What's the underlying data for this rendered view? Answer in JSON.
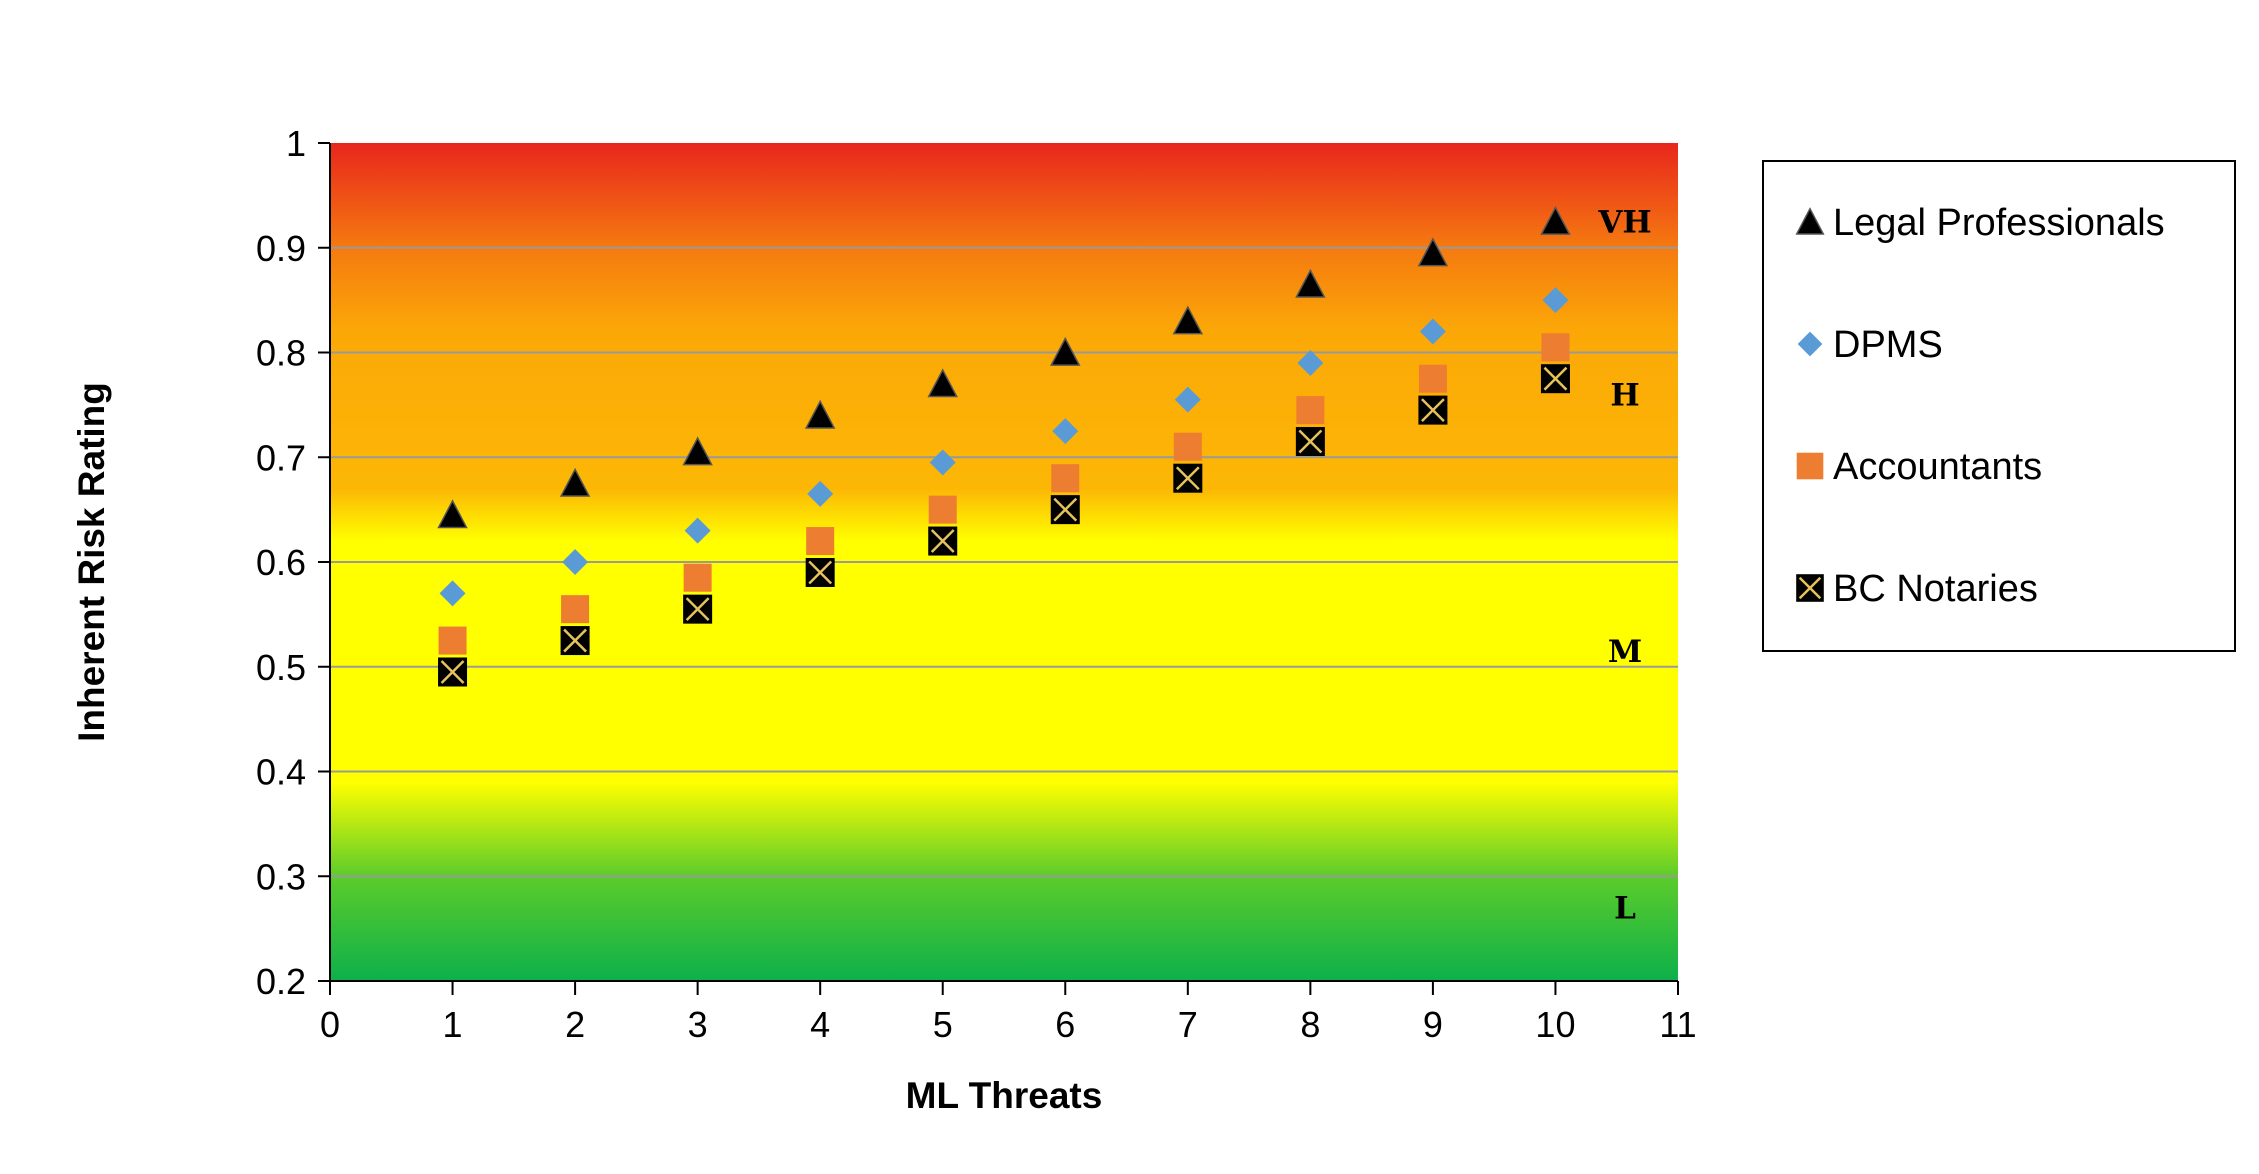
{
  "chart_data": {
    "type": "scatter",
    "title": "",
    "xlabel": "ML Threats",
    "ylabel": "Inherent Risk Rating",
    "xlim": [
      0,
      11
    ],
    "ylim": [
      0.2,
      1
    ],
    "x_ticks": [
      "0",
      "1",
      "2",
      "3",
      "4",
      "5",
      "6",
      "7",
      "8",
      "9",
      "10",
      "11"
    ],
    "y_ticks": [
      "0.2",
      "0.3",
      "0.4",
      "0.5",
      "0.6",
      "0.7",
      "0.8",
      "0.9",
      "1"
    ],
    "grid": "horizontal",
    "legend_position": "right",
    "background_gradient": [
      {
        "value": 1.0,
        "color": "#e8261c"
      },
      {
        "value": 0.9,
        "color": "#f57a10"
      },
      {
        "value": 0.82,
        "color": "#fba807"
      },
      {
        "value": 0.67,
        "color": "#fcb705"
      },
      {
        "value": 0.62,
        "color": "#ffff00"
      },
      {
        "value": 0.39,
        "color": "#ffff00"
      },
      {
        "value": 0.3,
        "color": "#5ccc2a"
      },
      {
        "value": 0.2,
        "color": "#0db04b"
      }
    ],
    "band_labels": [
      {
        "text": "VH",
        "y": 0.925
      },
      {
        "text": "H",
        "y": 0.76
      },
      {
        "text": "M",
        "y": 0.515
      },
      {
        "text": "L",
        "y": 0.27
      }
    ],
    "x": [
      1,
      2,
      3,
      4,
      5,
      6,
      7,
      8,
      9,
      10
    ],
    "series": [
      {
        "name": "Legal Professionals",
        "marker": "triangle",
        "color": "#000000",
        "values": [
          0.645,
          0.675,
          0.705,
          0.74,
          0.77,
          0.8,
          0.83,
          0.865,
          0.895,
          0.925
        ]
      },
      {
        "name": "DPMS",
        "marker": "diamond",
        "color": "#5b9bd5",
        "values": [
          0.57,
          0.6,
          0.63,
          0.665,
          0.695,
          0.725,
          0.755,
          0.79,
          0.82,
          0.85
        ]
      },
      {
        "name": "Accountants",
        "marker": "square",
        "color": "#ed7d31",
        "values": [
          0.525,
          0.555,
          0.585,
          0.62,
          0.65,
          0.68,
          0.71,
          0.745,
          0.775,
          0.805
        ]
      },
      {
        "name": "BC Notaries",
        "marker": "x-square",
        "color": "#000000",
        "values": [
          0.495,
          0.525,
          0.555,
          0.59,
          0.62,
          0.65,
          0.68,
          0.715,
          0.745,
          0.775
        ]
      }
    ]
  }
}
